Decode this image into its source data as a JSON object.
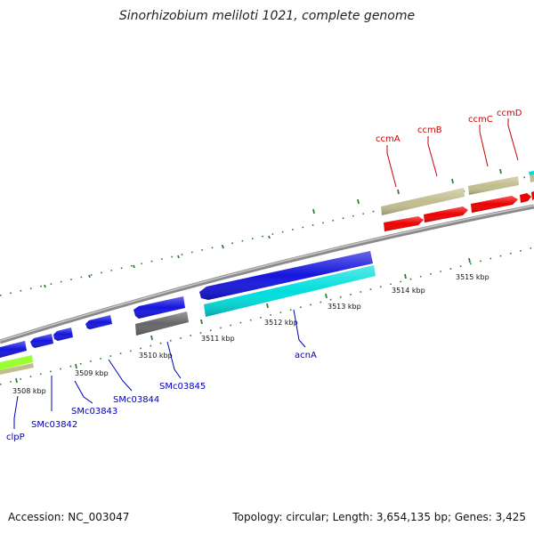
{
  "title": "Sinorhizobium meliloti 1021, complete genome",
  "footer": {
    "accession": "Accession: NC_003047",
    "stats": "Topology: circular; Length: 3,654,135 bp; Genes: 3,425"
  },
  "colors": {
    "backbone": "#8a8a8a",
    "tick": "#2e7d32",
    "forward_label": "#cc0000",
    "reverse_label": "#0000bb",
    "cds_red": "#ee0000",
    "cds_blue": "#1515dd",
    "cds_cyan": "#00dddd",
    "cds_gray": "#666666",
    "cds_khaki": "#c2bd8e",
    "cds_lime": "#99ff33"
  },
  "kbp_labels": [
    "3508 kbp",
    "3509 kbp",
    "3510 kbp",
    "3511 kbp",
    "3512 kbp",
    "3513 kbp",
    "3514 kbp",
    "3515 kbp"
  ],
  "forward_genes": [
    "ccmA",
    "ccmB",
    "ccmC",
    "ccmD"
  ],
  "reverse_genes": [
    "clpP",
    "SMc03842",
    "SMc03843",
    "SMc03844",
    "SMc03845",
    "acnA"
  ]
}
